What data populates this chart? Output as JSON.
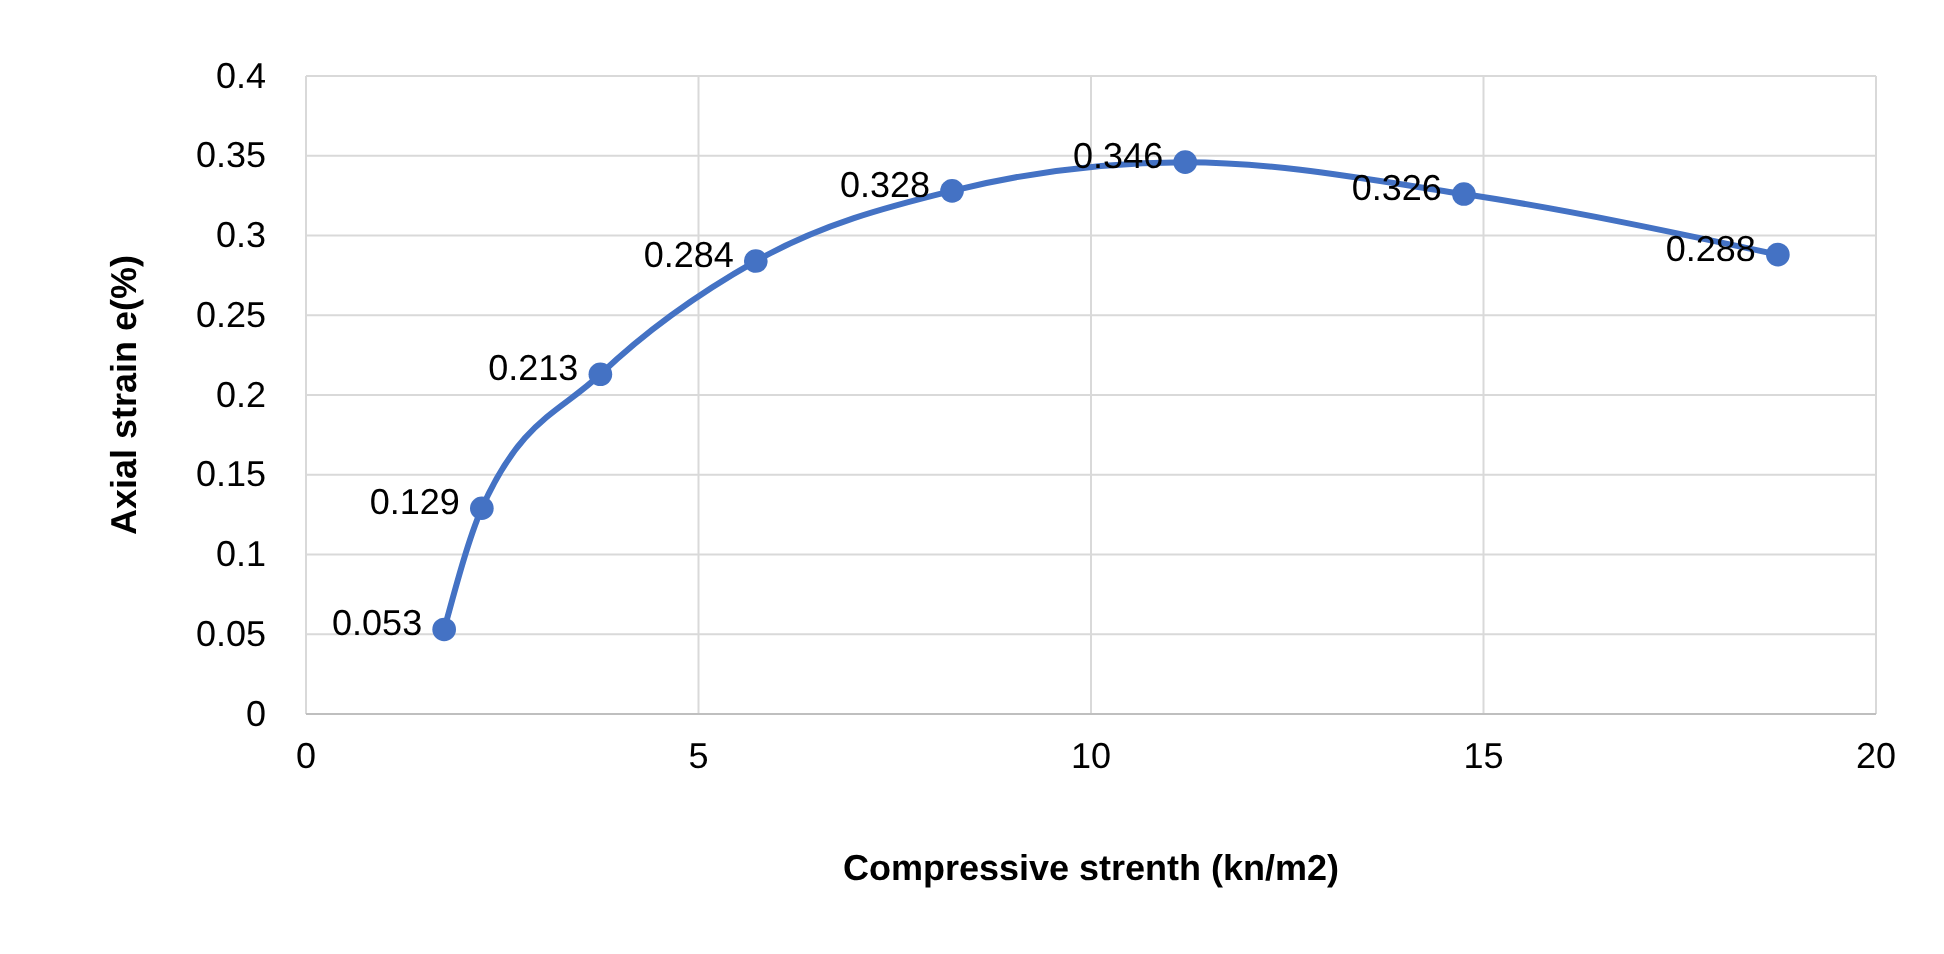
{
  "chart_data": {
    "type": "line",
    "xlabel": "Compressive strenth (kn/m2)",
    "ylabel": "Axial strain e(%)",
    "x": [
      1.76,
      2.24,
      3.75,
      5.73,
      8.23,
      11.2,
      14.75,
      18.75
    ],
    "series": [
      {
        "color": "#4472c4",
        "values": [
          0.053,
          0.129,
          0.213,
          0.284,
          0.328,
          0.346,
          0.326,
          0.288
        ]
      }
    ],
    "xlim": [
      0,
      20
    ],
    "xticks": [
      0,
      5,
      10,
      15,
      20
    ],
    "ylim": [
      0,
      0.4
    ],
    "yticks": [
      0,
      0.05,
      0.1,
      0.15,
      0.2,
      0.25,
      0.3,
      0.35,
      0.4
    ],
    "grid": true,
    "marker": "circle",
    "line_style": "solid",
    "data_labels": true
  }
}
